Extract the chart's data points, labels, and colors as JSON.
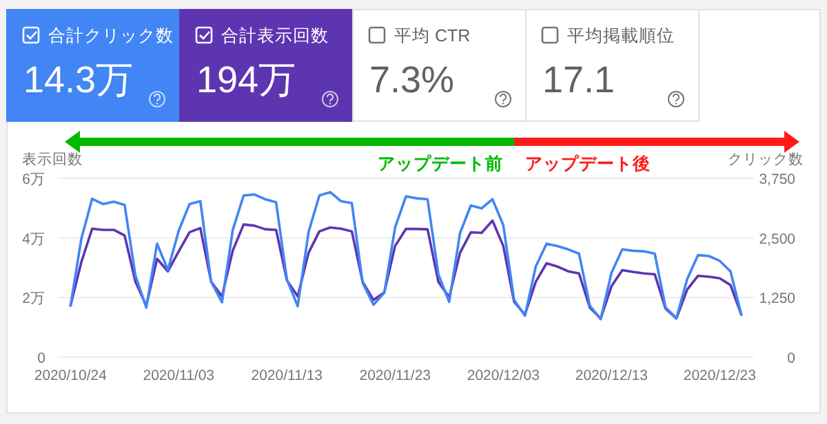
{
  "chart_data": [
    {
      "type": "other",
      "categories": [
        "合計クリック数",
        "合計表示回数",
        "平均 CTR",
        "平均掲載順位"
      ],
      "value_labels": [
        "14.3万",
        "194万",
        "7.3%",
        "17.1"
      ],
      "colors": [
        "#4285f4",
        "#5e35b1",
        null,
        null
      ]
    },
    {
      "type": "line",
      "xlabel": null,
      "ylabel": "表示回数",
      "y2label": "クリック数",
      "x": [
        "2020-10-24",
        "2020-10-25",
        "2020-10-26",
        "2020-10-27",
        "2020-10-28",
        "2020-10-29",
        "2020-10-30",
        "2020-10-31",
        "2020-11-01",
        "2020-11-02",
        "2020-11-03",
        "2020-11-04",
        "2020-11-05",
        "2020-11-06",
        "2020-11-07",
        "2020-11-08",
        "2020-11-09",
        "2020-11-10",
        "2020-11-11",
        "2020-11-12",
        "2020-11-13",
        "2020-11-14",
        "2020-11-15",
        "2020-11-16",
        "2020-11-17",
        "2020-11-18",
        "2020-11-19",
        "2020-11-20",
        "2020-11-21",
        "2020-11-22",
        "2020-11-23",
        "2020-11-24",
        "2020-11-25",
        "2020-11-26",
        "2020-11-27",
        "2020-11-28",
        "2020-11-29",
        "2020-11-30",
        "2020-12-01",
        "2020-12-02",
        "2020-12-03",
        "2020-12-04",
        "2020-12-05",
        "2020-12-06",
        "2020-12-07",
        "2020-12-08",
        "2020-12-09",
        "2020-12-10",
        "2020-12-11",
        "2020-12-12",
        "2020-12-13",
        "2020-12-14",
        "2020-12-15",
        "2020-12-16",
        "2020-12-17",
        "2020-12-18",
        "2020-12-19",
        "2020-12-20",
        "2020-12-21",
        "2020-12-22",
        "2020-12-23",
        "2020-12-24",
        "2020-12-25"
      ],
      "series": [
        {
          "color": "#5e35b1",
          "values": [
            1.73,
            3.19,
            4.31,
            4.27,
            4.27,
            4.08,
            2.53,
            1.73,
            3.3,
            2.88,
            3.55,
            4.19,
            4.33,
            2.53,
            2.04,
            3.58,
            4.45,
            4.41,
            4.29,
            4.27,
            2.58,
            2.04,
            3.5,
            4.22,
            4.35,
            4.31,
            4.22,
            2.53,
            1.92,
            2.17,
            3.73,
            4.3,
            4.3,
            4.29,
            2.53,
            2.01,
            3.5,
            4.19,
            4.17,
            4.58,
            3.73,
            1.86,
            1.43,
            2.53,
            3.15,
            3.04,
            2.88,
            2.81,
            1.66,
            1.3,
            2.38,
            2.92,
            2.86,
            2.81,
            2.78,
            1.63,
            1.3,
            2.27,
            2.73,
            2.7,
            2.65,
            2.42,
            1.43
          ]
        },
        {
          "color": "#4285f4",
          "axis": "y2",
          "values": [
            1080,
            2480,
            3320,
            3210,
            3260,
            3190,
            1710,
            1040,
            2380,
            1830,
            2650,
            3210,
            3270,
            1580,
            1150,
            2670,
            3390,
            3410,
            3310,
            3250,
            1630,
            1070,
            2620,
            3390,
            3460,
            3270,
            3230,
            1560,
            1100,
            1350,
            2720,
            3370,
            3330,
            3310,
            1740,
            1160,
            2600,
            3180,
            3120,
            3310,
            2770,
            1200,
            870,
            1900,
            2380,
            2330,
            2260,
            2170,
            1080,
            800,
            1770,
            2260,
            2230,
            2220,
            2170,
            1040,
            820,
            1640,
            2140,
            2120,
            2020,
            1800,
            890
          ]
        }
      ],
      "xlim": [
        "2020-10-22T20:00",
        "2020-12-26T04:00"
      ],
      "xticks": [
        {
          "value": "2020-10-24",
          "label": "2020/10/24"
        },
        {
          "value": "2020-11-03",
          "label": "2020/11/03"
        },
        {
          "value": "2020-11-13",
          "label": "2020/11/13"
        },
        {
          "value": "2020-11-23",
          "label": "2020/11/23"
        },
        {
          "value": "2020-12-03",
          "label": "2020/12/03"
        },
        {
          "value": "2020-12-13",
          "label": "2020/12/13"
        },
        {
          "value": "2020-12-23",
          "label": "2020/12/23"
        }
      ],
      "ylim": [
        0,
        6
      ],
      "yticks": [
        0,
        {
          "value": 2,
          "label": "2万"
        },
        {
          "value": 4,
          "label": "4万"
        },
        {
          "value": 6,
          "label": "6万"
        }
      ],
      "y2lim": [
        0,
        3750
      ],
      "y2ticks": [
        0,
        {
          "value": 1250,
          "label": "1,250"
        },
        {
          "value": 2500,
          "label": "2,500"
        },
        {
          "value": 3750,
          "label": "3,750"
        }
      ],
      "annotations": [
        "アップデート前",
        "アップデート後"
      ],
      "grid": "y",
      "marker": "none",
      "line_style": "solid"
    }
  ]
}
